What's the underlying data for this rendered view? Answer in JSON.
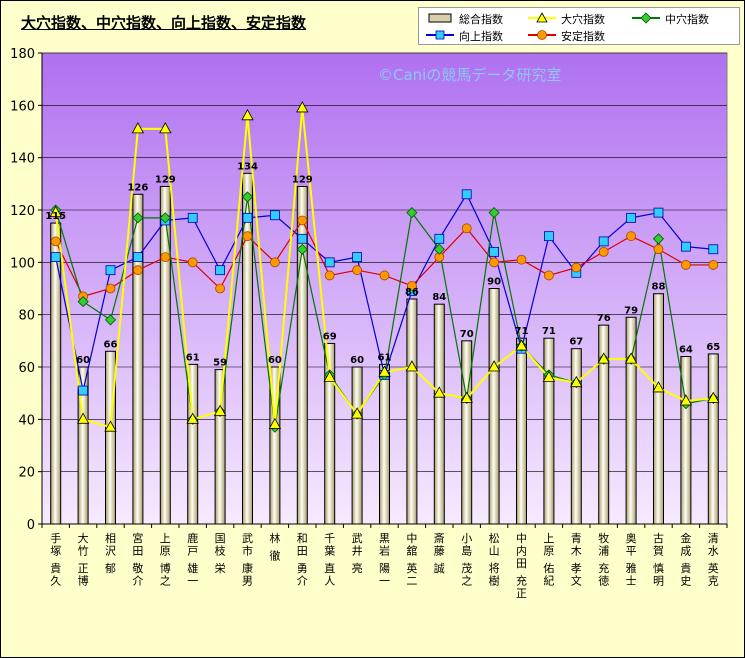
{
  "chart_data": {
    "type": "bar",
    "title": "大穴指数、中穴指数、向上指数、安定指数",
    "watermark": "©Caniの競馬データ研究室",
    "ylim": [
      0,
      180
    ],
    "yticks": [
      0,
      20,
      40,
      60,
      80,
      100,
      120,
      140,
      160,
      180
    ],
    "grid": true,
    "legend_position": "top-right",
    "categories": [
      "手塚 貴久",
      "大竹 正博",
      "相沢 郁",
      "宮田 敬介",
      "上原 博之",
      "鹿戸 雄一",
      "国枝 栄",
      "武市 康男",
      "林 徹",
      "和田 勇介",
      "千葉 直人",
      "武井 亮",
      "黒岩 陽一",
      "中舘 英二",
      "斎藤 誠",
      "小島 茂之",
      "松山 将樹",
      "中内田 充正",
      "上原 佑紀",
      "青木 孝文",
      "牧浦 充徳",
      "奥平 雅士",
      "古賀 慎明",
      "金成 貴史",
      "清水 英克"
    ],
    "series": [
      {
        "name": "総合指数",
        "type": "bar",
        "color": "#D8D0A8",
        "values": [
          115,
          60,
          66,
          126,
          129,
          61,
          59,
          134,
          60,
          129,
          69,
          60,
          61,
          86,
          84,
          70,
          90,
          71,
          71,
          67,
          76,
          79,
          88,
          64,
          65
        ]
      },
      {
        "name": "大穴指数",
        "type": "line",
        "color": "#FFFF00",
        "marker": "triangle",
        "values": [
          119,
          40,
          37,
          151,
          151,
          40,
          43,
          156,
          38,
          159,
          56,
          42,
          58,
          60,
          50,
          48,
          60,
          68,
          56,
          54,
          63,
          63,
          52,
          47,
          48
        ]
      },
      {
        "name": "中穴指数",
        "type": "line",
        "color": "#007700",
        "marker": "diamond",
        "values": [
          120,
          85,
          78,
          117,
          117,
          40,
          43,
          125,
          37,
          105,
          57,
          42,
          57,
          119,
          105,
          48,
          119,
          68,
          57,
          54,
          63,
          63,
          109,
          46,
          48
        ]
      },
      {
        "name": "向上指数",
        "type": "line",
        "color": "#0000DD",
        "marker": "square",
        "values": [
          102,
          51,
          97,
          102,
          116,
          117,
          97,
          117,
          118,
          109,
          100,
          102,
          57,
          89,
          109,
          126,
          104,
          67,
          110,
          96,
          108,
          117,
          119,
          106,
          105
        ]
      },
      {
        "name": "安定指数",
        "type": "line",
        "color": "#DD0000",
        "marker": "circle",
        "values": [
          108,
          87,
          90,
          97,
          102,
          100,
          90,
          110,
          100,
          116,
          95,
          97,
          95,
          91,
          102,
          113,
          100,
          101,
          95,
          98,
          104,
          110,
          105,
          99,
          99
        ]
      }
    ],
    "bar_labels": [
      "115",
      "60",
      "66",
      "126",
      "129",
      "61",
      "59",
      "134",
      "60",
      "129",
      "69",
      "60",
      "61",
      "86",
      "84",
      "70",
      "90",
      "71",
      "71",
      "67",
      "76",
      "79",
      "88",
      "64",
      "65"
    ]
  }
}
